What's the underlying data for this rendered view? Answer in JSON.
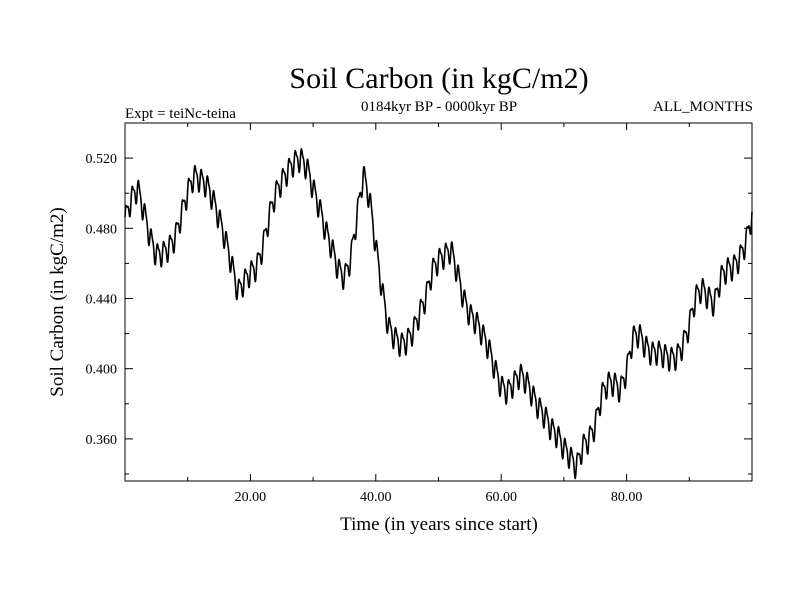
{
  "chart_data": {
    "type": "line",
    "title": "Soil Carbon (in kgC/m2)",
    "subtitle": "0184kyr BP - 0000kyr BP",
    "left_label": "Expt = teiNc-teina",
    "right_label": "ALL_MONTHS",
    "xlabel": "Time (in years since start)",
    "ylabel": "Soil Carbon (in kgC/m2)",
    "xlim": [
      0,
      100
    ],
    "ylim": [
      0.336,
      0.54
    ],
    "x_ticks": [
      20,
      40,
      60,
      80
    ],
    "x_tick_labels": [
      "20.00",
      "40.00",
      "60.00",
      "80.00"
    ],
    "y_ticks": [
      0.36,
      0.4,
      0.44,
      0.48,
      0.52
    ],
    "y_tick_labels": [
      "0.360",
      "0.400",
      "0.440",
      "0.480",
      "0.520"
    ],
    "grid": false,
    "series": [
      {
        "name": "Soil Carbon",
        "color": "#000000",
        "seasonal_amplitude": 0.006,
        "seasonal_period": 1,
        "trend_x": [
          0,
          1,
          2,
          3,
          4,
          5,
          6,
          7,
          8,
          9,
          10,
          11,
          12,
          13,
          14,
          15,
          16,
          17,
          18,
          19,
          20,
          21,
          22,
          23,
          24,
          25,
          26,
          27,
          28,
          29,
          30,
          31,
          32,
          33,
          34,
          35,
          36,
          37,
          38,
          39,
          40,
          41,
          42,
          43,
          44,
          45,
          46,
          47,
          48,
          49,
          50,
          51,
          52,
          53,
          54,
          55,
          56,
          57,
          58,
          59,
          60,
          61,
          62,
          63,
          64,
          65,
          66,
          67,
          68,
          69,
          70,
          71,
          72,
          73,
          74,
          75,
          76,
          77,
          78,
          79,
          80,
          81,
          82,
          83,
          84,
          85,
          86,
          87,
          88,
          89,
          90,
          91,
          92,
          93,
          94,
          95,
          96,
          97,
          98,
          99,
          100
        ],
        "trend_y": [
          0.485,
          0.497,
          0.503,
          0.49,
          0.475,
          0.465,
          0.466,
          0.469,
          0.475,
          0.488,
          0.501,
          0.51,
          0.508,
          0.505,
          0.497,
          0.486,
          0.474,
          0.46,
          0.444,
          0.45,
          0.455,
          0.458,
          0.47,
          0.487,
          0.5,
          0.507,
          0.513,
          0.518,
          0.52,
          0.515,
          0.503,
          0.492,
          0.479,
          0.469,
          0.457,
          0.452,
          0.463,
          0.487,
          0.511,
          0.497,
          0.47,
          0.445,
          0.424,
          0.418,
          0.414,
          0.416,
          0.422,
          0.432,
          0.441,
          0.456,
          0.462,
          0.465,
          0.468,
          0.455,
          0.44,
          0.431,
          0.427,
          0.42,
          0.412,
          0.4,
          0.39,
          0.387,
          0.392,
          0.397,
          0.393,
          0.385,
          0.378,
          0.373,
          0.366,
          0.362,
          0.355,
          0.35,
          0.344,
          0.356,
          0.36,
          0.368,
          0.385,
          0.392,
          0.392,
          0.388,
          0.399,
          0.418,
          0.42,
          0.413,
          0.409,
          0.41,
          0.408,
          0.406,
          0.407,
          0.414,
          0.425,
          0.441,
          0.446,
          0.441,
          0.437,
          0.452,
          0.457,
          0.458,
          0.463,
          0.472,
          0.488
        ]
      }
    ]
  }
}
